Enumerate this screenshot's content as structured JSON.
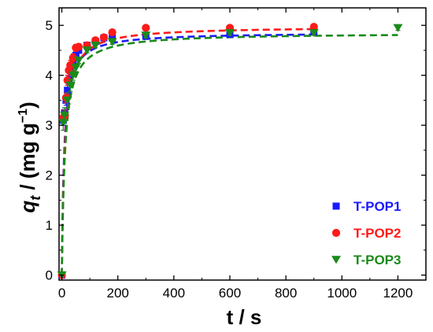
{
  "chart_data": {
    "type": "scatter",
    "xlabel": "t / s",
    "ylabel_parts": {
      "var": "q",
      "sub": "t",
      "unit": " / (mg g",
      "exp": "−1",
      "close": ")"
    },
    "xlim": [
      -10,
      1300
    ],
    "ylim": [
      -0.1,
      5.35
    ],
    "x_ticks": [
      0,
      200,
      400,
      600,
      800,
      1000,
      1200
    ],
    "y_ticks": [
      0,
      1,
      2,
      3,
      4,
      5
    ],
    "x_tick_labels": [
      "0",
      "200",
      "400",
      "600",
      "800",
      "1000",
      "1200"
    ],
    "y_tick_labels": [
      "0",
      "1",
      "2",
      "3",
      "4",
      "5"
    ],
    "grid": false,
    "legend_position": "bottom-right",
    "series": [
      {
        "name": "T-POP1",
        "color": "#1a1aff",
        "marker": "square",
        "x": [
          0,
          5,
          10,
          15,
          20,
          25,
          30,
          40,
          50,
          60,
          90,
          120,
          150,
          180,
          300,
          600,
          900
        ],
        "y": [
          0.0,
          3.1,
          3.25,
          3.5,
          3.7,
          3.9,
          4.1,
          4.3,
          4.4,
          4.5,
          4.6,
          4.68,
          4.75,
          4.75,
          4.78,
          4.82,
          4.87
        ],
        "err": [
          0,
          0.1,
          0.1,
          0.1,
          0.1,
          0.08,
          0.08,
          0.08,
          0.07,
          0.06,
          0.06,
          0.05,
          0.05,
          0.05,
          0.05,
          0.05,
          0.05
        ],
        "fit": {
          "qe": 4.86,
          "k": 0.12
        }
      },
      {
        "name": "T-POP2",
        "color": "#ff1a1a",
        "marker": "circle",
        "x": [
          0,
          5,
          10,
          15,
          20,
          25,
          30,
          40,
          50,
          60,
          90,
          120,
          150,
          180,
          300,
          600,
          900
        ],
        "y": [
          0.0,
          3.15,
          3.2,
          3.55,
          3.9,
          4.1,
          4.2,
          4.35,
          4.55,
          4.57,
          4.6,
          4.7,
          4.76,
          4.86,
          4.95,
          4.95,
          4.97
        ],
        "err": [
          0,
          0.1,
          0.1,
          0.1,
          0.1,
          0.1,
          0.1,
          0.08,
          0.07,
          0.06,
          0.05,
          0.05,
          0.05,
          0.05,
          0.05,
          0.05,
          0.05
        ],
        "fit": {
          "qe": 4.98,
          "k": 0.1
        }
      },
      {
        "name": "T-POP3",
        "color": "#1a8a1a",
        "marker": "triangle-down",
        "x": [
          0,
          5,
          10,
          20,
          30,
          40,
          50,
          60,
          90,
          120,
          180,
          300,
          600,
          900,
          1200
        ],
        "y": [
          0.0,
          3.05,
          3.2,
          3.5,
          3.8,
          4.0,
          4.15,
          4.3,
          4.5,
          4.6,
          4.67,
          4.8,
          4.85,
          4.85,
          4.95
        ],
        "err": [
          0,
          0.15,
          0.15,
          0.15,
          0.12,
          0.1,
          0.08,
          0.06,
          0.05,
          0.05,
          0.05,
          0.05,
          0.05,
          0.05,
          0.05
        ],
        "fit": {
          "qe": 4.85,
          "k": 0.09
        }
      }
    ]
  }
}
